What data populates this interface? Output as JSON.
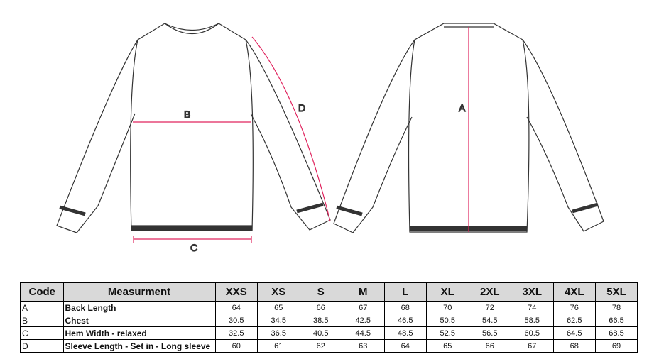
{
  "diagram": {
    "labels": {
      "a": "A",
      "b": "B",
      "c": "C",
      "d": "D"
    },
    "measure_color": "#e0245e"
  },
  "table": {
    "headers": [
      "Code",
      "Measurment",
      "XXS",
      "XS",
      "S",
      "M",
      "L",
      "XL",
      "2XL",
      "3XL",
      "4XL",
      "5XL"
    ],
    "rows": [
      {
        "code": "A",
        "name": "Back Length",
        "values": [
          "64",
          "65",
          "66",
          "67",
          "68",
          "70",
          "72",
          "74",
          "76",
          "78"
        ]
      },
      {
        "code": "B",
        "name": "Chest",
        "values": [
          "30.5",
          "34.5",
          "38.5",
          "42.5",
          "46.5",
          "50.5",
          "54.5",
          "58.5",
          "62.5",
          "66.5"
        ]
      },
      {
        "code": "C",
        "name": "Hem Width - relaxed",
        "values": [
          "32.5",
          "36.5",
          "40.5",
          "44.5",
          "48.5",
          "52.5",
          "56.5",
          "60.5",
          "64.5",
          "68.5"
        ]
      },
      {
        "code": "D",
        "name": "Sleeve Length - Set in - Long sleeve",
        "values": [
          "60",
          "61",
          "62",
          "63",
          "64",
          "65",
          "66",
          "67",
          "68",
          "69"
        ]
      }
    ]
  }
}
